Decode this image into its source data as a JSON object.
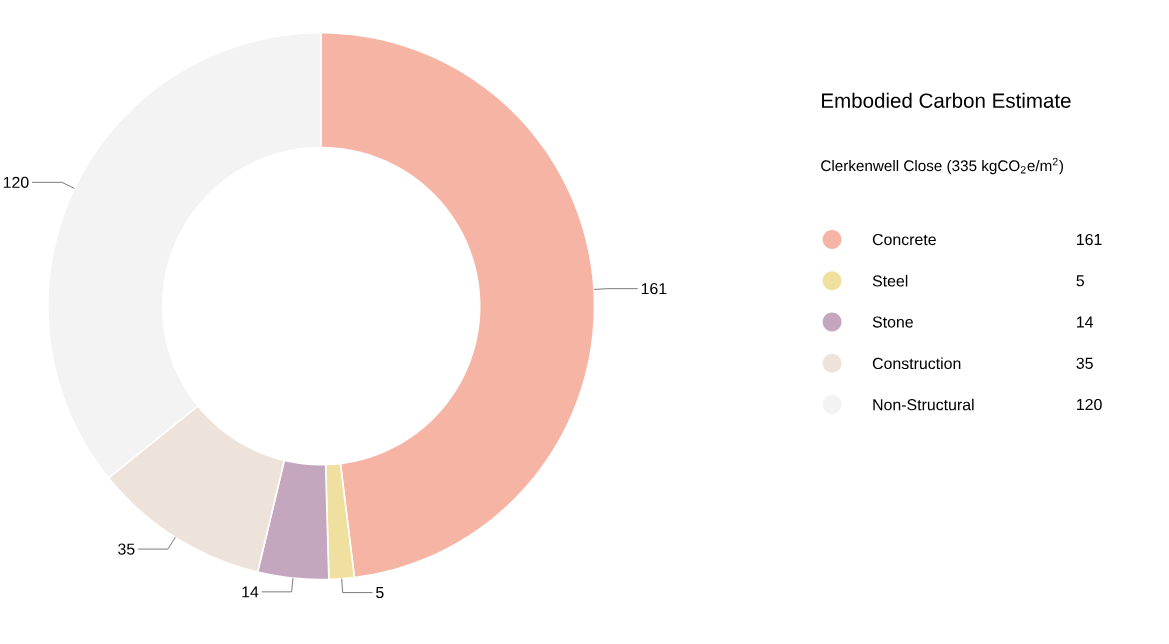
{
  "chart_data": {
    "type": "donut",
    "title": "Embodied Carbon Estimate",
    "subtitle": "Clerkenwell Close (335 kgCO$_{2}$e/m$^{2}$)",
    "categories": [
      "Concrete",
      "Steel",
      "Stone",
      "Construction",
      "Non-Structural"
    ],
    "values": [
      161,
      5,
      14,
      35,
      120
    ],
    "value_labels": [
      "161",
      "5",
      "14",
      "35",
      "120"
    ],
    "colors": [
      "#f6b5a4",
      "#f0e0a0",
      "#c4a6bf",
      "#ede3da",
      "#f3f3f3"
    ],
    "data_labels": true,
    "legend": "right"
  }
}
